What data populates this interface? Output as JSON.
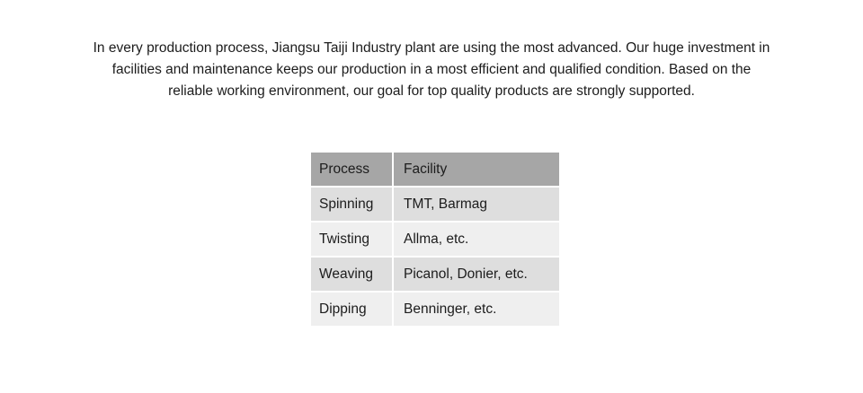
{
  "intro": {
    "lines": [
      "In every production process, Jiangsu Taiji Industry plant are using the most advanced. Our huge investment in",
      "facilities and maintenance keeps our production in a most efficient and qualified condition. Based on the",
      "reliable working environment, our goal for top quality products are strongly supported."
    ]
  },
  "table": {
    "columns": {
      "process": "Process",
      "facility": "Facility"
    },
    "rows": [
      {
        "process": "Spinning",
        "facility": "TMT, Barmag"
      },
      {
        "process": "Twisting",
        "facility": "Allma, etc."
      },
      {
        "process": "Weaving",
        "facility": "Picanol, Donier, etc."
      },
      {
        "process": "Dipping",
        "facility": "Benninger, etc."
      }
    ]
  },
  "colors": {
    "header_bg": "#a6a6a6",
    "row_odd_bg": "#dedede",
    "row_even_bg": "#efefef",
    "text": "#1c1c1c"
  }
}
